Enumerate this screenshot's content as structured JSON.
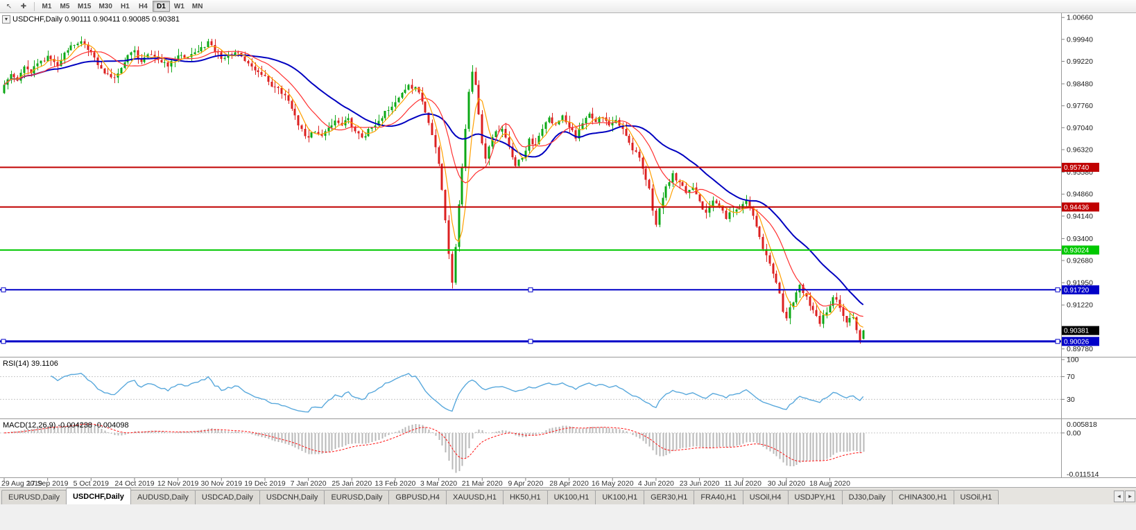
{
  "toolbar": {
    "timeframes": [
      "M1",
      "M5",
      "M15",
      "M30",
      "H1",
      "H4",
      "D1",
      "W1",
      "MN"
    ],
    "active_timeframe": "D1"
  },
  "icons": {
    "cursor": "↖",
    "crosshair": "✚",
    "collapse": "▾",
    "tab_left": "◂",
    "tab_right": "▸"
  },
  "chart": {
    "symbol": "USDCHF,Daily",
    "ohlc_line": "USDCHF,Daily 0.90111 0.90411 0.90085 0.90381",
    "quote": {
      "open": "0.90111",
      "high": "0.90411",
      "low": "0.90085",
      "close": "0.90381"
    },
    "y_domain": [
      0.8952,
      1.008
    ],
    "price_axis": [
      {
        "label": "1.00660",
        "value": 1.0066
      },
      {
        "label": "0.99940",
        "value": 0.9994
      },
      {
        "label": "0.99220",
        "value": 0.9922
      },
      {
        "label": "0.98480",
        "value": 0.9848
      },
      {
        "label": "0.97760",
        "value": 0.9776
      },
      {
        "label": "0.97040",
        "value": 0.9704
      },
      {
        "label": "0.96320",
        "value": 0.9632
      },
      {
        "label": "0.95580",
        "value": 0.9558
      },
      {
        "label": "0.94860",
        "value": 0.9486
      },
      {
        "label": "0.94140",
        "value": 0.9414
      },
      {
        "label": "0.93400",
        "value": 0.934
      },
      {
        "label": "0.92680",
        "value": 0.9268
      },
      {
        "label": "0.91950",
        "value": 0.9195
      },
      {
        "label": "0.91220",
        "value": 0.9122
      },
      {
        "label": "0.89780",
        "value": 0.8978
      }
    ],
    "levels": [
      {
        "price": 0.9574,
        "label": "0.95740",
        "color": "#c00000",
        "width": 2,
        "handles": false
      },
      {
        "price": 0.94436,
        "label": "0.94436",
        "color": "#c00000",
        "width": 2,
        "handles": false
      },
      {
        "price": 0.93024,
        "label": "0.93024",
        "color": "#00c800",
        "width": 2,
        "handles": false
      },
      {
        "price": 0.9172,
        "label": "0.91720",
        "color": "#0000c8",
        "width": 2,
        "handles": true
      },
      {
        "price": 0.90026,
        "label": "0.90026",
        "color": "#0000c8",
        "width": 3,
        "handles": true
      }
    ],
    "current_price": {
      "label": "0.90381",
      "value": 0.90381
    },
    "dates": [
      "29 Aug 2019",
      "17 Sep 2019",
      "5 Oct 2019",
      "24 Oct 2019",
      "12 Nov 2019",
      "30 Nov 2019",
      "19 Dec 2019",
      "7 Jan 2020",
      "25 Jan 2020",
      "13 Feb 2020",
      "3 Mar 2020",
      "21 Mar 2020",
      "9 Apr 2020",
      "28 Apr 2020",
      "16 May 2020",
      "4 Jun 2020",
      "23 Jun 2020",
      "11 Jul 2020",
      "30 Jul 2020",
      "18 Aug 2020"
    ]
  },
  "rsi": {
    "header": "RSI(14) 39.1106",
    "period": 14,
    "axis": [
      {
        "label": "100",
        "value": 100
      },
      {
        "label": "70",
        "value": 70
      },
      {
        "label": "30",
        "value": 30
      }
    ],
    "guides": [
      70,
      30
    ]
  },
  "macd": {
    "header": "MACD(12,26,9) -0.004238 -0.004098",
    "fast": 12,
    "slow": 26,
    "signal": 9,
    "axis_top": "0.005818",
    "axis_zero": "0.00",
    "axis_bottom": "-0.011514"
  },
  "tabs": {
    "active_index": 1,
    "items": [
      "EURUSD,Daily",
      "USDCHF,Daily",
      "AUDUSD,Daily",
      "USDCAD,Daily",
      "USDCNH,Daily",
      "EURUSD,Daily",
      "GBPUSD,H4",
      "XAUUSD,H1",
      "HK50,H1",
      "UK100,H1",
      "UK100,H1",
      "GER30,H1",
      "FRA40,H1",
      "USOil,H4",
      "USDJPY,H1",
      "DJ30,Daily",
      "CHINA300,H1",
      "USOil,H1"
    ]
  },
  "candles": {
    "count": 258,
    "seed": 11,
    "anchors": [
      [
        0,
        0.9845
      ],
      [
        2,
        0.988
      ],
      [
        4,
        0.9858
      ],
      [
        6,
        0.9905
      ],
      [
        8,
        0.9882
      ],
      [
        10,
        0.9915
      ],
      [
        13,
        0.994
      ],
      [
        16,
        0.9906
      ],
      [
        18,
        0.995
      ],
      [
        21,
        0.9975
      ],
      [
        23,
        0.9988
      ],
      [
        25,
        0.996
      ],
      [
        27,
        0.9935
      ],
      [
        29,
        0.9898
      ],
      [
        31,
        0.988
      ],
      [
        33,
        0.9868
      ],
      [
        35,
        0.99
      ],
      [
        37,
        0.9942
      ],
      [
        39,
        0.9958
      ],
      [
        41,
        0.992
      ],
      [
        43,
        0.9945
      ],
      [
        45,
        0.9938
      ],
      [
        47,
        0.9918
      ],
      [
        49,
        0.9905
      ],
      [
        51,
        0.9928
      ],
      [
        53,
        0.9942
      ],
      [
        55,
        0.9935
      ],
      [
        57,
        0.9952
      ],
      [
        59,
        0.9968
      ],
      [
        61,
        0.9988
      ],
      [
        63,
        0.9952
      ],
      [
        65,
        0.993
      ],
      [
        67,
        0.9945
      ],
      [
        69,
        0.9952
      ],
      [
        71,
        0.9938
      ],
      [
        73,
        0.9915
      ],
      [
        75,
        0.9892
      ],
      [
        77,
        0.9878
      ],
      [
        79,
        0.9855
      ],
      [
        81,
        0.9838
      ],
      [
        83,
        0.9815
      ],
      [
        85,
        0.9792
      ],
      [
        87,
        0.9745
      ],
      [
        89,
        0.97
      ],
      [
        91,
        0.9672
      ],
      [
        93,
        0.969
      ],
      [
        95,
        0.9678
      ],
      [
        97,
        0.9705
      ],
      [
        99,
        0.9728
      ],
      [
        101,
        0.9712
      ],
      [
        103,
        0.9735
      ],
      [
        105,
        0.9692
      ],
      [
        107,
        0.9672
      ],
      [
        109,
        0.97
      ],
      [
        111,
        0.9712
      ],
      [
        113,
        0.9735
      ],
      [
        115,
        0.9762
      ],
      [
        117,
        0.9788
      ],
      [
        119,
        0.9818
      ],
      [
        121,
        0.9845
      ],
      [
        123,
        0.9838
      ],
      [
        125,
        0.979
      ],
      [
        127,
        0.972
      ],
      [
        128,
        0.968
      ],
      [
        129,
        0.964
      ],
      [
        130,
        0.9585
      ],
      [
        131,
        0.95
      ],
      [
        132,
        0.94
      ],
      [
        133,
        0.929
      ],
      [
        134,
        0.9195
      ],
      [
        135,
        0.9312
      ],
      [
        136,
        0.9452
      ],
      [
        137,
        0.9572
      ],
      [
        138,
        0.97
      ],
      [
        139,
        0.9822
      ],
      [
        140,
        0.9888
      ],
      [
        141,
        0.9845
      ],
      [
        142,
        0.9748
      ],
      [
        143,
        0.9652
      ],
      [
        144,
        0.9602
      ],
      [
        145,
        0.9642
      ],
      [
        147,
        0.9692
      ],
      [
        149,
        0.97
      ],
      [
        151,
        0.9642
      ],
      [
        153,
        0.9578
      ],
      [
        155,
        0.9605
      ],
      [
        157,
        0.9668
      ],
      [
        159,
        0.965
      ],
      [
        161,
        0.97
      ],
      [
        163,
        0.9738
      ],
      [
        165,
        0.9715
      ],
      [
        167,
        0.9745
      ],
      [
        169,
        0.9705
      ],
      [
        171,
        0.9668
      ],
      [
        173,
        0.9718
      ],
      [
        175,
        0.975
      ],
      [
        177,
        0.9722
      ],
      [
        179,
        0.9738
      ],
      [
        181,
        0.9712
      ],
      [
        183,
        0.973
      ],
      [
        185,
        0.97
      ],
      [
        187,
        0.9655
      ],
      [
        189,
        0.9625
      ],
      [
        191,
        0.957
      ],
      [
        193,
        0.9505
      ],
      [
        194,
        0.9432
      ],
      [
        195,
        0.9385
      ],
      [
        196,
        0.944
      ],
      [
        198,
        0.9512
      ],
      [
        200,
        0.9555
      ],
      [
        202,
        0.9525
      ],
      [
        204,
        0.949
      ],
      [
        206,
        0.9508
      ],
      [
        208,
        0.9462
      ],
      [
        210,
        0.9425
      ],
      [
        212,
        0.9465
      ],
      [
        214,
        0.9442
      ],
      [
        216,
        0.9405
      ],
      [
        218,
        0.9428
      ],
      [
        220,
        0.9438
      ],
      [
        222,
        0.9465
      ],
      [
        224,
        0.9415
      ],
      [
        226,
        0.9345
      ],
      [
        228,
        0.9285
      ],
      [
        230,
        0.9225
      ],
      [
        232,
        0.916
      ],
      [
        233,
        0.91
      ],
      [
        234,
        0.9078
      ],
      [
        236,
        0.913
      ],
      [
        238,
        0.9188
      ],
      [
        240,
        0.915
      ],
      [
        242,
        0.9105
      ],
      [
        244,
        0.906
      ],
      [
        246,
        0.9098
      ],
      [
        248,
        0.9148
      ],
      [
        250,
        0.9112
      ],
      [
        252,
        0.9065
      ],
      [
        254,
        0.9082
      ],
      [
        255,
        0.904
      ],
      [
        256,
        0.9005
      ],
      [
        257,
        0.90381
      ]
    ]
  },
  "colors": {
    "up": "#0ca816",
    "down": "#dc2020",
    "ma_fast": "#ffa000",
    "ma_mid": "#ff3030",
    "ma_slow": "#0000c0",
    "rsi_line": "#58a8dc",
    "macd_hist": "#b8b8b8",
    "macd_signal": "#ff1010",
    "current_badge": "#000000",
    "axis_text": "#1a1a1a"
  }
}
